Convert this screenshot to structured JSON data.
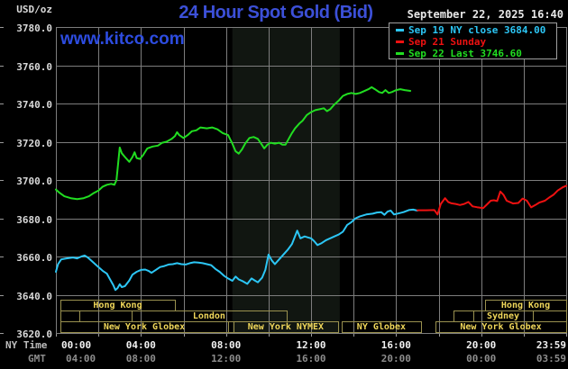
{
  "header": {
    "unit": "USD/oz",
    "title": "24 Hour Spot Gold (Bid)",
    "datetime": "September 22, 2025 16:40",
    "watermark": "www.kitco.com"
  },
  "legend": {
    "items": [
      {
        "label": "Sep 19 NY close 3684.00",
        "color": "#2cc6f5"
      },
      {
        "label": "Sep 21 Sunday",
        "color": "#ee1111"
      },
      {
        "label": "Sep 22 Last 3746.60",
        "color": "#21dd21"
      }
    ]
  },
  "axes": {
    "ny_time_label": "NY Time",
    "gmt_label": "GMT"
  },
  "chart_data": {
    "type": "line",
    "title": "24 Hour Spot Gold (Bid)",
    "unit": "USD/oz",
    "ylim": [
      3620,
      3780
    ],
    "y_tick_labels": [
      "3780.0",
      "3760.0",
      "3740.0",
      "3720.0",
      "3700.0",
      "3680.0",
      "3660.0",
      "3640.0",
      "3620.0"
    ],
    "x_hours_span": 24,
    "grid_hours_step": 2,
    "grid_color": "#7d7d7d",
    "tick_color": "#9a9a9a",
    "ny_ticks": [
      {
        "hour": 0,
        "label": "00:00"
      },
      {
        "hour": 4,
        "label": "04:00"
      },
      {
        "hour": 8,
        "label": "08:00"
      },
      {
        "hour": 12,
        "label": "12:00"
      },
      {
        "hour": 16,
        "label": "16:00"
      },
      {
        "hour": 20,
        "label": "20:00"
      },
      {
        "hour": 24,
        "label": "23:59"
      }
    ],
    "gmt_ticks": [
      {
        "hour": 0,
        "label": "04:00"
      },
      {
        "hour": 4,
        "label": "08:00"
      },
      {
        "hour": 8,
        "label": "12:00"
      },
      {
        "hour": 12,
        "label": "16:00"
      },
      {
        "hour": 16,
        "label": "20:00"
      },
      {
        "hour": 20,
        "label": "00:00"
      },
      {
        "hour": 24,
        "label": "03:59"
      }
    ],
    "nymex_band_hours": [
      8.3,
      13.35
    ],
    "band_color": "#111611",
    "sessions": {
      "border_color": "#9a914f",
      "text_color": "#f0d75a",
      "rows": [
        [
          {
            "label": "Hong Kong",
            "start": 0.21,
            "end": 5.6
          },
          {
            "label": "Hong Kong",
            "start": 20.18,
            "end": 24
          }
        ],
        [
          {
            "label": "",
            "start": 0.21,
            "end": 1.1
          },
          {
            "label": "",
            "start": 1.1,
            "end": 3.56
          },
          {
            "label": "London",
            "start": 3.56,
            "end": 10.85
          },
          {
            "label": "",
            "start": 18.7,
            "end": 19.63
          },
          {
            "label": "Sydney",
            "start": 19.63,
            "end": 22.43
          },
          {
            "label": "",
            "start": 22.43,
            "end": 24
          }
        ],
        [
          {
            "label": "New York Globex",
            "start": 0.21,
            "end": 8.1
          },
          {
            "label": "",
            "start": 8.1,
            "end": 8.35
          },
          {
            "label": "New York NYMEX",
            "start": 8.35,
            "end": 13.27
          },
          {
            "label": "NY Globex",
            "start": 13.44,
            "end": 17.17
          },
          {
            "label": "New York Globex",
            "start": 17.85,
            "end": 24
          }
        ]
      ]
    },
    "series": [
      {
        "name": "Sep 19 NY close",
        "color": "#2cc6f5",
        "close": 3684.0,
        "points": [
          [
            0,
            3652
          ],
          [
            0.1,
            3656
          ],
          [
            0.25,
            3658.5
          ],
          [
            0.5,
            3659
          ],
          [
            0.8,
            3659.5
          ],
          [
            1,
            3659
          ],
          [
            1.2,
            3660
          ],
          [
            1.35,
            3660.5
          ],
          [
            1.5,
            3659.5
          ],
          [
            1.65,
            3658
          ],
          [
            1.85,
            3656
          ],
          [
            2,
            3654.5
          ],
          [
            2.2,
            3652.5
          ],
          [
            2.4,
            3651
          ],
          [
            2.55,
            3648
          ],
          [
            2.7,
            3645
          ],
          [
            2.8,
            3642.5
          ],
          [
            2.9,
            3643.5
          ],
          [
            3,
            3645.5
          ],
          [
            3.1,
            3644
          ],
          [
            3.25,
            3644.5
          ],
          [
            3.45,
            3647.5
          ],
          [
            3.6,
            3650.5
          ],
          [
            3.8,
            3652
          ],
          [
            4,
            3653
          ],
          [
            4.2,
            3653.2
          ],
          [
            4.35,
            3652.5
          ],
          [
            4.5,
            3651.5
          ],
          [
            4.7,
            3653
          ],
          [
            4.9,
            3654.5
          ],
          [
            5.1,
            3655
          ],
          [
            5.3,
            3655.8
          ],
          [
            5.5,
            3656
          ],
          [
            5.7,
            3656.5
          ],
          [
            5.9,
            3656
          ],
          [
            6.1,
            3655.8
          ],
          [
            6.3,
            3656.5
          ],
          [
            6.5,
            3657
          ],
          [
            6.7,
            3656.8
          ],
          [
            6.9,
            3656.5
          ],
          [
            7.1,
            3656
          ],
          [
            7.3,
            3655.5
          ],
          [
            7.5,
            3653.5
          ],
          [
            7.7,
            3652
          ],
          [
            7.9,
            3650
          ],
          [
            8.1,
            3648.5
          ],
          [
            8.3,
            3647.3
          ],
          [
            8.45,
            3649.5
          ],
          [
            8.6,
            3648
          ],
          [
            8.8,
            3647
          ],
          [
            9,
            3645.7
          ],
          [
            9.2,
            3648.5
          ],
          [
            9.35,
            3647.5
          ],
          [
            9.5,
            3646.5
          ],
          [
            9.7,
            3649
          ],
          [
            9.85,
            3653
          ],
          [
            10,
            3661
          ],
          [
            10.15,
            3658
          ],
          [
            10.3,
            3656
          ],
          [
            10.5,
            3658.5
          ],
          [
            10.7,
            3661
          ],
          [
            10.9,
            3663.5
          ],
          [
            11.1,
            3666.5
          ],
          [
            11.35,
            3673.5
          ],
          [
            11.5,
            3669.5
          ],
          [
            11.7,
            3670.5
          ],
          [
            11.85,
            3670
          ],
          [
            12,
            3669.5
          ],
          [
            12.15,
            3668
          ],
          [
            12.3,
            3666
          ],
          [
            12.5,
            3667
          ],
          [
            12.7,
            3668.5
          ],
          [
            12.9,
            3669.5
          ],
          [
            13.1,
            3670.5
          ],
          [
            13.3,
            3671.5
          ],
          [
            13.5,
            3673
          ],
          [
            13.7,
            3676.5
          ],
          [
            13.9,
            3678
          ],
          [
            14.1,
            3680
          ],
          [
            14.3,
            3681
          ],
          [
            14.6,
            3682
          ],
          [
            14.9,
            3682.4
          ],
          [
            15.1,
            3683
          ],
          [
            15.3,
            3683.2
          ],
          [
            15.45,
            3681.8
          ],
          [
            15.6,
            3683.5
          ],
          [
            15.75,
            3684
          ],
          [
            15.9,
            3682
          ],
          [
            16.1,
            3682.5
          ],
          [
            16.35,
            3683.2
          ],
          [
            16.6,
            3684.3
          ],
          [
            16.8,
            3684.5
          ],
          [
            17,
            3684
          ]
        ]
      },
      {
        "name": "Sep 21 Sunday",
        "color": "#ee1111",
        "points": [
          [
            17,
            3684.2
          ],
          [
            17.4,
            3684.2
          ],
          [
            17.8,
            3684.3
          ],
          [
            17.95,
            3682
          ],
          [
            18.1,
            3687.5
          ],
          [
            18.3,
            3690.5
          ],
          [
            18.45,
            3688.5
          ],
          [
            18.6,
            3687.8
          ],
          [
            18.8,
            3687.5
          ],
          [
            19,
            3686.9
          ],
          [
            19.2,
            3687.5
          ],
          [
            19.4,
            3688.5
          ],
          [
            19.6,
            3686.2
          ],
          [
            19.8,
            3685.8
          ],
          [
            20.1,
            3685.3
          ],
          [
            20.3,
            3687.5
          ],
          [
            20.45,
            3689.2
          ],
          [
            20.6,
            3689.4
          ],
          [
            20.75,
            3689
          ],
          [
            20.9,
            3694
          ],
          [
            21.05,
            3692.3
          ],
          [
            21.2,
            3689.2
          ],
          [
            21.5,
            3687.7
          ],
          [
            21.75,
            3688
          ],
          [
            21.95,
            3690.3
          ],
          [
            22.15,
            3689.2
          ],
          [
            22.35,
            3685.7
          ],
          [
            22.55,
            3686.9
          ],
          [
            22.75,
            3688.3
          ],
          [
            23,
            3689.2
          ],
          [
            23.2,
            3690.8
          ],
          [
            23.4,
            3692.3
          ],
          [
            23.6,
            3694.5
          ],
          [
            23.85,
            3696.3
          ],
          [
            24,
            3697
          ]
        ]
      },
      {
        "name": "Sep 22 Last",
        "color": "#21dd21",
        "last": 3746.6,
        "points": [
          [
            0,
            3695
          ],
          [
            0.15,
            3693.5
          ],
          [
            0.4,
            3691.5
          ],
          [
            0.7,
            3690.5
          ],
          [
            1,
            3690
          ],
          [
            1.3,
            3690.5
          ],
          [
            1.55,
            3691.5
          ],
          [
            1.75,
            3693
          ],
          [
            2,
            3694.5
          ],
          [
            2.2,
            3696.5
          ],
          [
            2.4,
            3697.5
          ],
          [
            2.6,
            3698
          ],
          [
            2.75,
            3697.5
          ],
          [
            2.85,
            3700
          ],
          [
            3,
            3717
          ],
          [
            3.1,
            3714
          ],
          [
            3.25,
            3712
          ],
          [
            3.45,
            3709.5
          ],
          [
            3.6,
            3712
          ],
          [
            3.7,
            3714.5
          ],
          [
            3.8,
            3711.5
          ],
          [
            3.95,
            3711
          ],
          [
            4.1,
            3713
          ],
          [
            4.3,
            3716.5
          ],
          [
            4.55,
            3717.5
          ],
          [
            4.8,
            3718
          ],
          [
            5,
            3719.5
          ],
          [
            5.2,
            3720
          ],
          [
            5.45,
            3721.5
          ],
          [
            5.6,
            3723
          ],
          [
            5.7,
            3725
          ],
          [
            5.8,
            3723.5
          ],
          [
            6,
            3722
          ],
          [
            6.2,
            3723.5
          ],
          [
            6.4,
            3725.5
          ],
          [
            6.6,
            3726
          ],
          [
            6.8,
            3727.5
          ],
          [
            7.1,
            3727
          ],
          [
            7.35,
            3727.5
          ],
          [
            7.6,
            3726.5
          ],
          [
            7.85,
            3724.5
          ],
          [
            8.1,
            3723.5
          ],
          [
            8.3,
            3719
          ],
          [
            8.45,
            3715
          ],
          [
            8.6,
            3713.8
          ],
          [
            8.75,
            3716
          ],
          [
            8.9,
            3719
          ],
          [
            9.1,
            3722
          ],
          [
            9.3,
            3722.5
          ],
          [
            9.5,
            3721.5
          ],
          [
            9.65,
            3719
          ],
          [
            9.8,
            3716.5
          ],
          [
            9.95,
            3718.5
          ],
          [
            10.1,
            3719.5
          ],
          [
            10.3,
            3719
          ],
          [
            10.5,
            3719.5
          ],
          [
            10.65,
            3718.5
          ],
          [
            10.8,
            3718.5
          ],
          [
            10.95,
            3721.5
          ],
          [
            11.1,
            3724.5
          ],
          [
            11.25,
            3727
          ],
          [
            11.45,
            3729.5
          ],
          [
            11.6,
            3731
          ],
          [
            11.8,
            3734
          ],
          [
            12,
            3735.5
          ],
          [
            12.2,
            3736.5
          ],
          [
            12.4,
            3737
          ],
          [
            12.6,
            3737.5
          ],
          [
            12.75,
            3736
          ],
          [
            12.9,
            3737
          ],
          [
            13.1,
            3739.5
          ],
          [
            13.3,
            3741.5
          ],
          [
            13.5,
            3744
          ],
          [
            13.7,
            3745
          ],
          [
            13.9,
            3745.5
          ],
          [
            14.1,
            3745
          ],
          [
            14.3,
            3745.5
          ],
          [
            14.5,
            3746.5
          ],
          [
            14.7,
            3747.5
          ],
          [
            14.85,
            3748.5
          ],
          [
            15,
            3747.5
          ],
          [
            15.2,
            3746
          ],
          [
            15.35,
            3745.5
          ],
          [
            15.5,
            3747
          ],
          [
            15.65,
            3745.5
          ],
          [
            15.8,
            3746
          ],
          [
            16,
            3747
          ],
          [
            16.2,
            3747.5
          ],
          [
            16.4,
            3747
          ],
          [
            16.67,
            3746.6
          ]
        ]
      }
    ]
  }
}
